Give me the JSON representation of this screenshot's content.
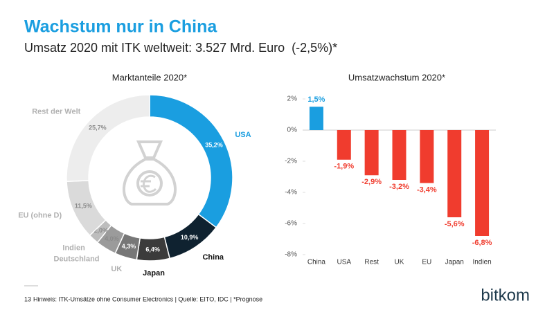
{
  "header": {
    "title": "Wachstum nur in China",
    "subtitle": "Umsatz 2020 mit ITK weltweit: 3.527 Mrd. Euro  (-2,5%)*"
  },
  "chart_data": [
    {
      "type": "donut",
      "title": "Marktanteile 2020*",
      "categories": [
        "USA",
        "China",
        "Japan",
        "UK",
        "Deutschland",
        "Indien",
        "EU (ohne D)",
        "Rest der Welt"
      ],
      "values": [
        35.2,
        10.9,
        6.4,
        4.3,
        4.0,
        2.0,
        11.5,
        25.7
      ],
      "value_labels": [
        "35,2%",
        "10,9%",
        "6,4%",
        "4,3%",
        "4,0%",
        "2,0%",
        "11,5%",
        "25,7%"
      ],
      "colors": [
        "#1a9ee0",
        "#0f2230",
        "#3b3b3b",
        "#777777",
        "#9b9b9b",
        "#bdbdbd",
        "#dadada",
        "#ededed"
      ]
    },
    {
      "type": "bar",
      "title": "Umsatzwachstum 2020*",
      "categories": [
        "China",
        "USA",
        "Rest",
        "UK",
        "EU",
        "Japan",
        "Indien"
      ],
      "values": [
        1.5,
        -1.9,
        -2.9,
        -3.2,
        -3.4,
        -5.6,
        -6.8
      ],
      "value_labels": [
        "1,5%",
        "-1,9%",
        "-2,9%",
        "-3,2%",
        "-3,4%",
        "-5,6%",
        "-6,8%"
      ],
      "colors": [
        "#1a9ee0",
        "#f03c2e",
        "#f03c2e",
        "#f03c2e",
        "#f03c2e",
        "#f03c2e",
        "#f03c2e"
      ],
      "ylim": [
        -8,
        2
      ],
      "yticks": [
        {
          "value": 2,
          "label": "2%"
        },
        {
          "value": 0,
          "label": "0%"
        },
        {
          "value": -2,
          "label": "-2%"
        },
        {
          "value": -4,
          "label": "-4%"
        },
        {
          "value": -6,
          "label": "-6%"
        },
        {
          "value": -8,
          "label": "-8%"
        }
      ],
      "grid": false
    }
  ],
  "footer": {
    "page": "13",
    "note": "Hinweis: ITK-Umsätze ohne Consumer Electronics | Quelle: EITO, IDC | *Prognose",
    "logo": "bitkom"
  }
}
